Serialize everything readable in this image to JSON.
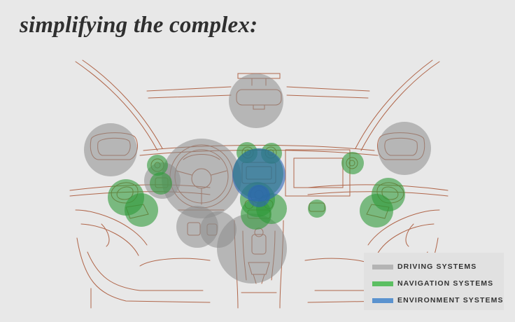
{
  "title": "simplifying the complex:",
  "colors": {
    "background": "#e8e8e8",
    "line": "#b0664a",
    "driving": "#8a8a8a",
    "navigation": "#3a9e3a",
    "environment": "#2f6fbf"
  },
  "legend": [
    {
      "label": "DRIVING SYSTEMS",
      "color": "#b4b4b4"
    },
    {
      "label": "NAVIGATION SYSTEMS",
      "color": "#5cbf62"
    },
    {
      "label": "ENVIRONMENT SYSTEMS",
      "color": "#5b93cf"
    }
  ]
}
